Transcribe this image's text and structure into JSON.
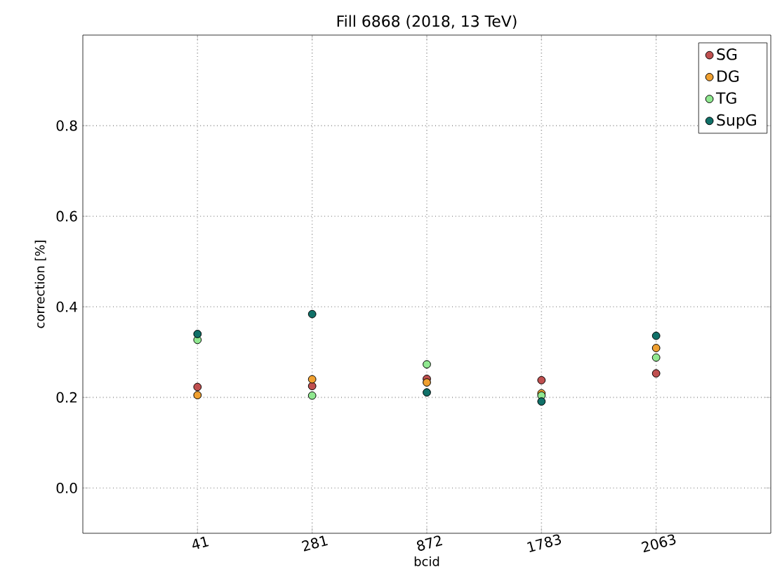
{
  "chart_data": {
    "type": "scatter",
    "title": "Fill 6868 (2018, 13 TeV)",
    "xlabel": "bcid",
    "ylabel": "correction [%]",
    "categories": [
      "41",
      "281",
      "872",
      "1783",
      "2063"
    ],
    "series": [
      {
        "name": "SG",
        "color": "#c05050",
        "values": [
          0.223,
          0.225,
          0.241,
          0.238,
          0.253
        ]
      },
      {
        "name": "DG",
        "color": "#f0a030",
        "values": [
          0.205,
          0.24,
          0.233,
          0.209,
          0.309
        ]
      },
      {
        "name": "TG",
        "color": "#90e890",
        "values": [
          0.327,
          0.204,
          0.273,
          0.204,
          0.288
        ]
      },
      {
        "name": "SupG",
        "color": "#107068",
        "values": [
          0.34,
          0.384,
          0.211,
          0.191,
          0.336
        ]
      }
    ],
    "ylim": [
      -0.1,
      1.0
    ],
    "yticks": [
      {
        "value": 0,
        "label": "0.0"
      },
      0.2,
      0.4,
      0.6,
      0.8
    ],
    "grid": true,
    "legend": "top right"
  }
}
